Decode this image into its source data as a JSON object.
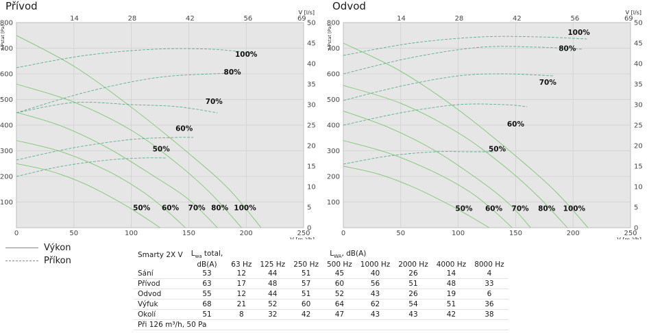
{
  "chart_data": [
    {
      "type": "line",
      "title": "Přívod",
      "xlabel": "V [m ³/h]",
      "x2label": "V [l/s]",
      "ylabel": "Δ Pstat [Pa]",
      "y2label": "P [W]",
      "xlim": [
        0,
        250
      ],
      "xticks": [
        "0",
        "50",
        "100",
        "150",
        "200",
        "250"
      ],
      "x2ticks": [
        "14",
        "28",
        "42",
        "56",
        "69"
      ],
      "ylim": [
        0,
        800
      ],
      "yticks": [
        "100",
        "200",
        "300",
        "400",
        "500",
        "600",
        "700",
        "800"
      ],
      "y2lim": [
        0,
        50
      ],
      "y2ticks": [
        "0",
        "5",
        "10",
        "15",
        "20",
        "25",
        "30",
        "35",
        "40",
        "45",
        "50"
      ],
      "grid": true,
      "pressure_series": [
        {
          "name": "50%",
          "x": [
            0,
            30,
            60,
            90,
            110,
            125
          ],
          "y": [
            250,
            220,
            170,
            100,
            45,
            0
          ]
        },
        {
          "name": "60%",
          "x": [
            0,
            40,
            80,
            110,
            130,
            147
          ],
          "y": [
            340,
            295,
            220,
            140,
            70,
            0
          ]
        },
        {
          "name": "70%",
          "x": [
            0,
            40,
            80,
            120,
            150,
            175
          ],
          "y": [
            450,
            395,
            310,
            200,
            110,
            0
          ]
        },
        {
          "name": "80%",
          "x": [
            0,
            50,
            100,
            140,
            170,
            196
          ],
          "y": [
            560,
            490,
            380,
            250,
            130,
            0
          ]
        },
        {
          "name": "100%",
          "x": [
            0,
            50,
            100,
            150,
            185,
            213
          ],
          "y": [
            750,
            630,
            470,
            290,
            150,
            0
          ]
        }
      ],
      "power_series": [
        {
          "name": "50%",
          "x": [
            0,
            40,
            80,
            110,
            130
          ],
          "y": [
            12.5,
            15,
            16.5,
            17,
            17
          ]
        },
        {
          "name": "60%",
          "x": [
            0,
            50,
            100,
            140,
            154
          ],
          "y": [
            16.5,
            19.5,
            21.5,
            22,
            22
          ]
        },
        {
          "name": "70%",
          "x": [
            0,
            50,
            100,
            140,
            175
          ],
          "y": [
            28,
            30.5,
            30,
            29.5,
            28
          ]
        },
        {
          "name": "80%",
          "x": [
            0,
            60,
            120,
            170,
            195
          ],
          "y": [
            28,
            33,
            36.5,
            37.5,
            37.5
          ]
        },
        {
          "name": "100%",
          "x": [
            0,
            60,
            120,
            170,
            208
          ],
          "y": [
            39,
            42,
            43.5,
            43.5,
            42.5
          ]
        }
      ],
      "annotations": [
        {
          "text": "100%",
          "x": 200,
          "y": 667
        },
        {
          "text": "80%",
          "x": 188,
          "y": 597
        },
        {
          "text": "70%",
          "x": 172,
          "y": 483
        },
        {
          "text": "60%",
          "x": 146,
          "y": 377
        },
        {
          "text": "50%",
          "x": 126,
          "y": 297
        },
        {
          "text": "50%",
          "x": 109,
          "y": 68
        },
        {
          "text": "60%",
          "x": 134,
          "y": 68
        },
        {
          "text": "70%",
          "x": 157,
          "y": 68
        },
        {
          "text": "80%",
          "x": 177,
          "y": 68
        },
        {
          "text": "100%",
          "x": 199,
          "y": 68
        }
      ]
    },
    {
      "type": "line",
      "title": "Odvod",
      "xlabel": "V [m ³/h]",
      "x2label": "V [l/s]",
      "ylabel": "Δ Pstat [Pa]",
      "y2label": "P [W]",
      "xlim": [
        0,
        250
      ],
      "xticks": [
        "0",
        "50",
        "100",
        "150",
        "200",
        "250"
      ],
      "x2ticks": [
        "14",
        "28",
        "42",
        "56",
        "69"
      ],
      "ylim": [
        0,
        800
      ],
      "yticks": [
        "100",
        "200",
        "300",
        "400",
        "500",
        "600",
        "700",
        "800"
      ],
      "y2lim": [
        0,
        50
      ],
      "y2ticks": [
        "0",
        "5",
        "10",
        "15",
        "20",
        "25",
        "30",
        "35",
        "40",
        "45",
        "50"
      ],
      "grid": true,
      "pressure_series": [
        {
          "name": "50%",
          "x": [
            0,
            30,
            60,
            90,
            110,
            127
          ],
          "y": [
            240,
            210,
            160,
            95,
            45,
            0
          ]
        },
        {
          "name": "60%",
          "x": [
            0,
            40,
            80,
            110,
            130,
            147
          ],
          "y": [
            340,
            290,
            215,
            140,
            70,
            0
          ]
        },
        {
          "name": "70%",
          "x": [
            0,
            40,
            80,
            120,
            145,
            163
          ],
          "y": [
            455,
            390,
            300,
            180,
            90,
            0
          ]
        },
        {
          "name": "80%",
          "x": [
            0,
            50,
            100,
            140,
            170,
            195
          ],
          "y": [
            555,
            485,
            370,
            240,
            120,
            0
          ]
        },
        {
          "name": "100%",
          "x": [
            0,
            50,
            100,
            150,
            185,
            213
          ],
          "y": [
            720,
            610,
            460,
            280,
            140,
            0
          ]
        }
      ],
      "power_series": [
        {
          "name": "50%",
          "x": [
            0,
            40,
            80,
            110,
            132
          ],
          "y": [
            15.5,
            17.5,
            18.5,
            18.5,
            18.5
          ]
        },
        {
          "name": "60%",
          "x": [
            0,
            50,
            100,
            140,
            160
          ],
          "y": [
            25,
            28,
            30,
            30,
            29.5
          ]
        },
        {
          "name": "70%",
          "x": [
            0,
            50,
            100,
            140,
            183
          ],
          "y": [
            31,
            34.5,
            37,
            37.5,
            37
          ]
        },
        {
          "name": "80%",
          "x": [
            0,
            60,
            120,
            170,
            208
          ],
          "y": [
            37.5,
            41.5,
            44,
            44,
            43.5
          ]
        },
        {
          "name": "100%",
          "x": [
            0,
            60,
            120,
            170,
            212
          ],
          "y": [
            42,
            45,
            46.5,
            46.5,
            46
          ]
        }
      ],
      "annotations": [
        {
          "text": "100%",
          "x": 205,
          "y": 752
        },
        {
          "text": "80%",
          "x": 195,
          "y": 690
        },
        {
          "text": "70%",
          "x": 178,
          "y": 558
        },
        {
          "text": "60%",
          "x": 150,
          "y": 395
        },
        {
          "text": "50%",
          "x": 134,
          "y": 297
        },
        {
          "text": "50%",
          "x": 105,
          "y": 65
        },
        {
          "text": "60%",
          "x": 131,
          "y": 65
        },
        {
          "text": "70%",
          "x": 154,
          "y": 65
        },
        {
          "text": "80%",
          "x": 177,
          "y": 65
        },
        {
          "text": "100%",
          "x": 201,
          "y": 65
        }
      ]
    }
  ],
  "legend": {
    "line1": "Výkon",
    "line2": "Příkon"
  },
  "table": {
    "model": "Smarty 2X V",
    "head_lwa_total_1": "L",
    "head_lwa_total_sub": "wa",
    "head_lwa_total_2": " total,",
    "head_lwa_total_unit": "dB(A)",
    "head_lwa_1": "L",
    "head_lwa_sub": "WA",
    "head_lwa_2": ", dB(A)",
    "bands": [
      "63 Hz",
      "125 Hz",
      "250 Hz",
      "500 Hz",
      "1000 Hz",
      "2000 Hz",
      "4000 Hz",
      "8000 Hz"
    ],
    "rows": [
      {
        "name": "Sání",
        "values": [
          "53",
          "12",
          "44",
          "51",
          "45",
          "40",
          "26",
          "14",
          "4"
        ]
      },
      {
        "name": "Přívod",
        "values": [
          "63",
          "17",
          "48",
          "57",
          "60",
          "56",
          "51",
          "48",
          "33"
        ]
      },
      {
        "name": "Odvod",
        "values": [
          "55",
          "12",
          "44",
          "51",
          "52",
          "43",
          "26",
          "19",
          "6"
        ]
      },
      {
        "name": "Výfuk",
        "values": [
          "68",
          "21",
          "52",
          "60",
          "64",
          "62",
          "54",
          "51",
          "36"
        ]
      },
      {
        "name": "Okolí",
        "values": [
          "51",
          "8",
          "32",
          "42",
          "47",
          "43",
          "43",
          "42",
          "38"
        ]
      }
    ],
    "footnote": "Při 126 m³/h, 50 Pa"
  },
  "colors": {
    "plot_bg": "#e6e6e6",
    "grid": "#cfcfcf",
    "pressure_line": "#7bc96f",
    "power_line": "#58b08a"
  }
}
